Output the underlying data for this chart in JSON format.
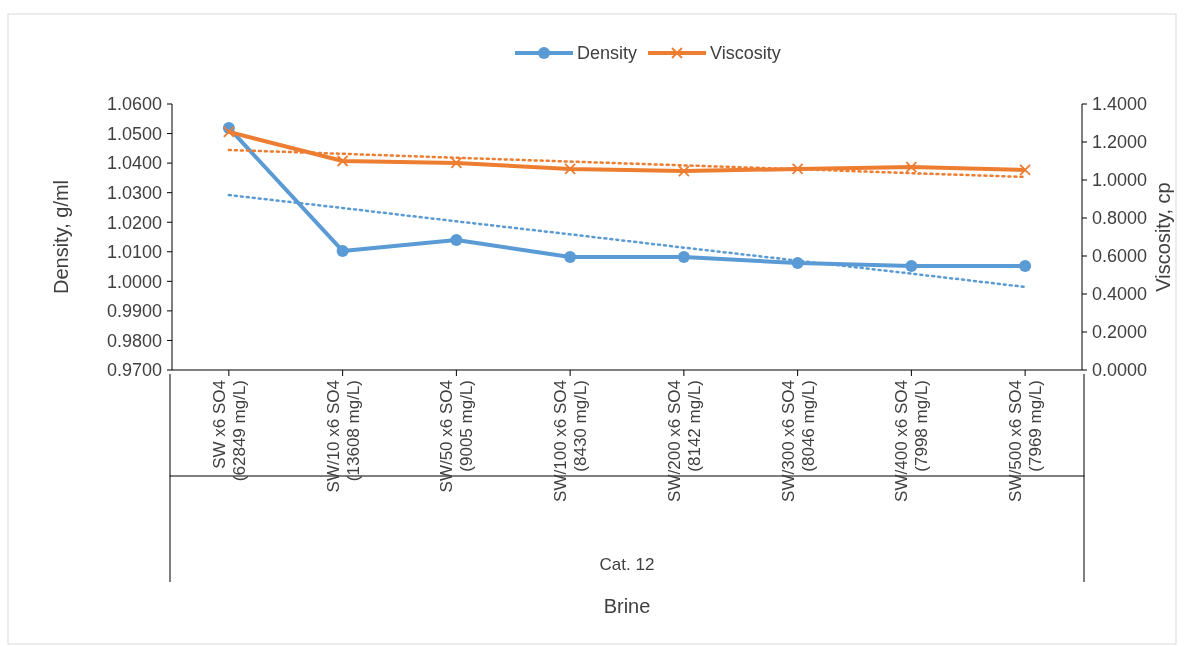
{
  "chart_data": {
    "type": "line",
    "xlabel": "Brine",
    "ylabel": "Density, g/ml",
    "y2label": "Viscosity, cp",
    "categories": [
      "SW x6 SO4\n(62849 mg/L)",
      "SW/10 x6 SO4\n(13608 mg/L)",
      "SW/50 x6 SO4\n(9005 mg/L)",
      "SW/100 x6 SO4\n(8430 mg/L)",
      "SW/200 x6 SO4\n(8142 mg/L)",
      "SW/300 x6 SO4\n(8046 mg/L)",
      "SW/400 x6 SO4\n(7998 mg/L)",
      "SW/500 x6 SO4\n(7969 mg/L)"
    ],
    "annotations": [
      "Cat. 12"
    ],
    "series": [
      {
        "name": "Density",
        "color": "#5b9bd5",
        "marker": "circle",
        "line_style": "solid",
        "values": [
          1.0519,
          1.0103,
          1.014,
          1.0082,
          1.0082,
          1.0062,
          1.0052,
          1.0052
        ]
      },
      {
        "name": "Viscosity",
        "color": "#ed7d31",
        "marker": "cross",
        "line_style": "solid",
        "axis": "y2",
        "values": [
          1.253,
          1.1,
          1.09,
          1.058,
          1.047,
          1.058,
          1.068,
          1.053
        ]
      },
      {
        "color": "#5b9bd5",
        "marker": "none",
        "line_style": "dotted",
        "values": [
          1.0292,
          1.0248,
          1.0203,
          1.0159,
          1.0114,
          1.007,
          1.0026,
          0.9981
        ]
      },
      {
        "color": "#ed7d31",
        "marker": "none",
        "line_style": "dotted",
        "axis": "y2",
        "values": [
          1.158,
          1.138,
          1.117,
          1.097,
          1.077,
          1.057,
          1.036,
          1.016
        ]
      }
    ],
    "ylim": [
      0.97,
      1.06
    ],
    "yticks": [
      {
        "value": 0.97,
        "label": "0.9700"
      },
      {
        "value": 0.98,
        "label": "0.9800"
      },
      {
        "value": 0.99,
        "label": "0.9900"
      },
      {
        "value": 1.0,
        "label": "1.0000"
      },
      {
        "value": 1.01,
        "label": "1.0100"
      },
      {
        "value": 1.02,
        "label": "1.0200"
      },
      {
        "value": 1.03,
        "label": "1.0300"
      },
      {
        "value": 1.04,
        "label": "1.0400"
      },
      {
        "value": 1.05,
        "label": "1.0500"
      },
      {
        "value": 1.06,
        "label": "1.0600"
      }
    ],
    "y2lim": [
      0,
      1.4
    ],
    "y2ticks": [
      {
        "value": 0,
        "label": "0.0000"
      },
      {
        "value": 0.2,
        "label": "0.2000"
      },
      {
        "value": 0.4,
        "label": "0.4000"
      },
      {
        "value": 0.6,
        "label": "0.6000"
      },
      {
        "value": 0.8,
        "label": "0.8000"
      },
      {
        "value": 1.0,
        "label": "1.0000"
      },
      {
        "value": 1.2,
        "label": "1.2000"
      },
      {
        "value": 1.4,
        "label": "1.4000"
      }
    ],
    "grid": false,
    "legend": "top"
  }
}
